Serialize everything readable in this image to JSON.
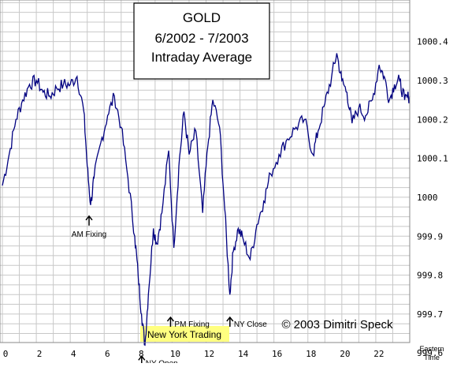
{
  "chart_data": {
    "type": "line",
    "title": [
      "GOLD",
      "6/2002 - 7/2003",
      "Intraday Average"
    ],
    "xlabel": "Eastern Time",
    "ylabel": "",
    "x_ticks": [
      0,
      2,
      4,
      6,
      8,
      10,
      12,
      14,
      16,
      18,
      20,
      22
    ],
    "y_ticks": [
      "999.6",
      "999.7",
      "999.8",
      "999.9",
      "1000",
      "1000.1",
      "1000.2",
      "1000.3",
      "1000.4"
    ],
    "xlim": [
      0,
      24
    ],
    "ylim": [
      999.55,
      1000.46
    ],
    "grid": true,
    "copyright": "© 2003 Dimitri Speck",
    "highlight_label": "New York Trading",
    "highlight_color": "#ffff80",
    "line_color": "#000080",
    "annotations": [
      {
        "name": "am-fixing",
        "label": "AM Fixing",
        "x": 5.2,
        "y": 999.98
      },
      {
        "name": "ny-open",
        "label": "NY Open",
        "x": 8.3,
        "y": 999.62
      },
      {
        "name": "pm-fixing",
        "label": "PM Fixing",
        "x": 10.0,
        "y": 999.72
      },
      {
        "name": "ny-close",
        "label": "NY Close",
        "x": 13.5,
        "y": 999.72
      }
    ],
    "series": [
      {
        "x": [
          0,
          0.4,
          0.8,
          1.2,
          1.6,
          2.0,
          2.4,
          2.8,
          3.2,
          3.6,
          4.0,
          4.4,
          4.8,
          5.0,
          5.2,
          5.4,
          5.8,
          6.2,
          6.6,
          7.0,
          7.4,
          7.8,
          8.0,
          8.2,
          8.4,
          8.6,
          8.9,
          9.1,
          9.4,
          9.8,
          10.1,
          10.4,
          10.7,
          11.0,
          11.4,
          11.8,
          12.1,
          12.4,
          12.8,
          13.1,
          13.4,
          13.6,
          13.9,
          14.2,
          14.6,
          15.0,
          15.4,
          15.8,
          16.3,
          16.8,
          17.3,
          17.8,
          18.3,
          18.6,
          19.0,
          19.4,
          19.7,
          20.0,
          20.3,
          20.6,
          21.0,
          21.4,
          21.8,
          22.2,
          22.5,
          22.8,
          23.1,
          23.4,
          23.7,
          24.0
        ],
        "y": [
          1000.03,
          1000.11,
          1000.2,
          1000.25,
          1000.29,
          1000.3,
          1000.27,
          1000.26,
          1000.28,
          1000.29,
          1000.29,
          1000.31,
          1000.22,
          1000.08,
          999.98,
          1000.05,
          1000.14,
          1000.21,
          1000.26,
          1000.18,
          1000.05,
          999.9,
          999.8,
          999.7,
          999.62,
          999.75,
          999.92,
          999.88,
          999.96,
          1000.12,
          999.87,
          1000.08,
          1000.22,
          1000.11,
          1000.17,
          999.96,
          1000.13,
          1000.25,
          1000.18,
          999.97,
          999.75,
          999.86,
          999.92,
          999.89,
          999.84,
          999.93,
          999.99,
          1000.06,
          1000.11,
          1000.15,
          1000.18,
          1000.2,
          1000.11,
          1000.17,
          1000.24,
          1000.31,
          1000.37,
          1000.3,
          1000.27,
          1000.19,
          1000.23,
          1000.21,
          1000.25,
          1000.34,
          1000.31,
          1000.25,
          1000.29,
          1000.3,
          1000.25,
          1000.26
        ]
      }
    ]
  }
}
